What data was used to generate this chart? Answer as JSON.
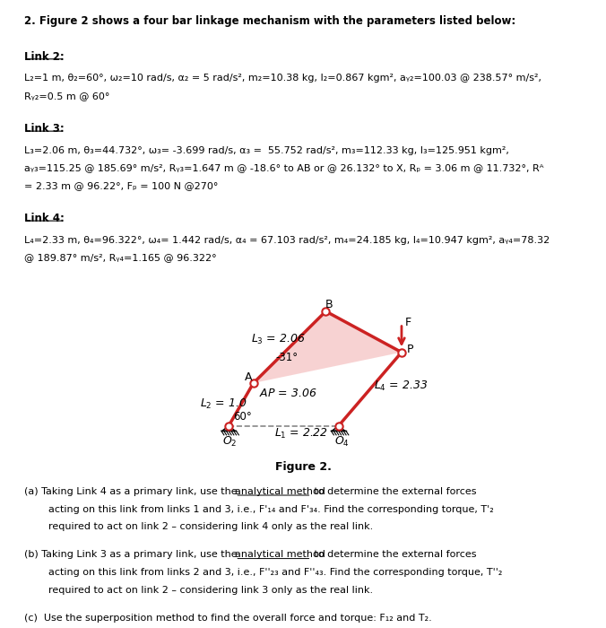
{
  "title_text": "2. Figure 2 shows a four bar linkage mechanism with the parameters listed below:",
  "link2_header": "Link 2:",
  "link3_header": "Link 3:",
  "link4_header": "Link 4:",
  "figure_caption": "Figure 2.",
  "bg_color": "#ffffff",
  "link_color": "#cc2222",
  "fill_color": "#f5c0c0",
  "text_color": "#000000"
}
